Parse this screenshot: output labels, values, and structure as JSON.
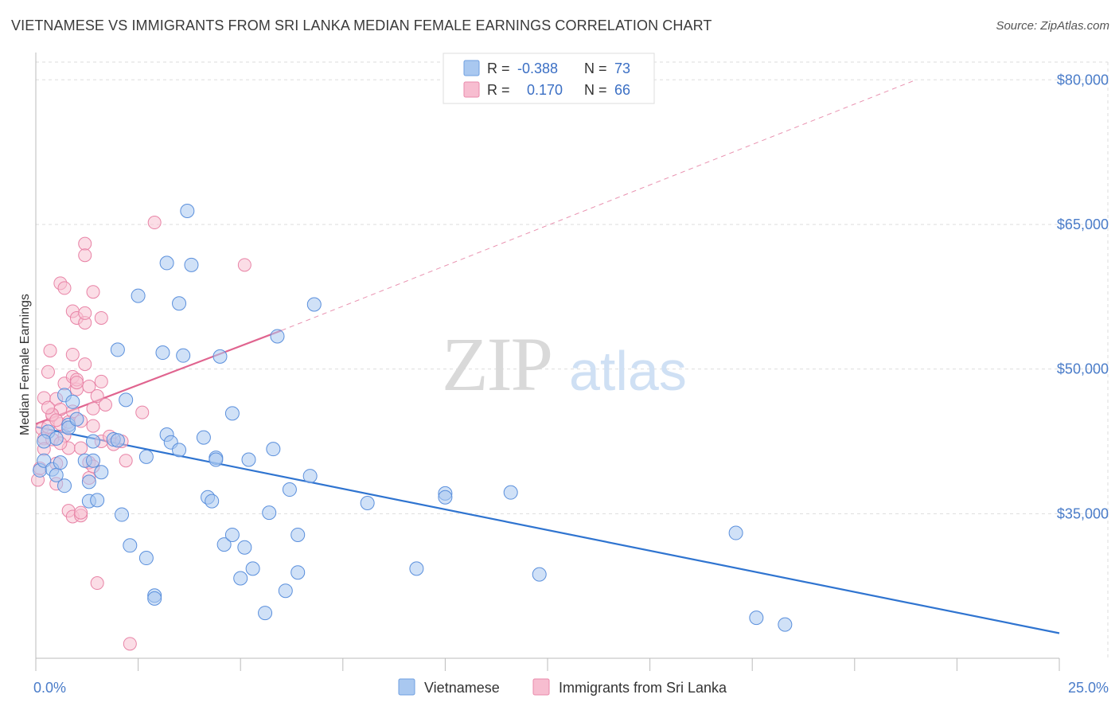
{
  "title": "VIETNAMESE VS IMMIGRANTS FROM SRI LANKA MEDIAN FEMALE EARNINGS CORRELATION CHART",
  "source": "Source: ZipAtlas.com",
  "watermark": "ZIPatlas",
  "legend_top": [
    {
      "r_label": "R =",
      "r_value": "-0.388",
      "n_label": "N =",
      "n_value": "73",
      "color": "#a9c8f0",
      "stroke": "#6f9fe0"
    },
    {
      "r_label": "R =",
      "r_value": "0.170",
      "n_label": "N =",
      "n_value": "66",
      "color": "#f7bdd0",
      "stroke": "#ea8aab"
    }
  ],
  "colors": {
    "vietnamese_fill": "#a9c8f0",
    "vietnamese_stroke": "#5a8fdc",
    "vietnamese_line": "#2f74d0",
    "srilanka_fill": "#f7c1d2",
    "srilanka_stroke": "#e883a6",
    "srilanka_line": "#e0648f",
    "grid": "#dddddd",
    "tick_label": "#4a7cc9"
  },
  "chart_data": {
    "type": "scatter",
    "title": "VIETNAMESE VS IMMIGRANTS FROM SRI LANKA MEDIAN FEMALE EARNINGS CORRELATION CHART",
    "xlabel": "",
    "ylabel": "Median Female Earnings",
    "xlim": [
      0,
      25
    ],
    "ylim": [
      20000,
      82500
    ],
    "x_ticks": [
      0,
      25
    ],
    "x_tick_labels": [
      "0.0%",
      "25.0%"
    ],
    "y_ticks": [
      35000,
      50000,
      65000,
      80000
    ],
    "y_tick_labels": [
      "$35,000",
      "$50,000",
      "$65,000",
      "$80,000"
    ],
    "grid": true,
    "legend_position": "top-center",
    "series": [
      {
        "name": "Vietnamese",
        "r": -0.388,
        "n": 73,
        "trend": {
          "x": [
            0,
            25
          ],
          "y": [
            44000,
            22600
          ]
        },
        "points": [
          [
            0.1,
            39500
          ],
          [
            0.2,
            40500
          ],
          [
            0.3,
            43500
          ],
          [
            0.4,
            39600
          ],
          [
            0.5,
            39000
          ],
          [
            0.5,
            42800
          ],
          [
            0.6,
            40300
          ],
          [
            0.7,
            47300
          ],
          [
            0.8,
            44200
          ],
          [
            0.8,
            43900
          ],
          [
            0.9,
            46600
          ],
          [
            1.0,
            44800
          ],
          [
            1.2,
            40500
          ],
          [
            1.3,
            36300
          ],
          [
            1.3,
            38300
          ],
          [
            1.4,
            40500
          ],
          [
            1.4,
            42500
          ],
          [
            1.6,
            39300
          ],
          [
            1.9,
            42700
          ],
          [
            2.0,
            42600
          ],
          [
            2.0,
            52000
          ],
          [
            2.1,
            34900
          ],
          [
            2.2,
            46800
          ],
          [
            2.3,
            31700
          ],
          [
            2.5,
            57600
          ],
          [
            2.7,
            30400
          ],
          [
            2.7,
            40900
          ],
          [
            2.9,
            26500
          ],
          [
            2.9,
            26200
          ],
          [
            3.1,
            51700
          ],
          [
            3.2,
            61000
          ],
          [
            3.2,
            43200
          ],
          [
            3.3,
            42400
          ],
          [
            3.5,
            41600
          ],
          [
            3.5,
            56800
          ],
          [
            3.6,
            51400
          ],
          [
            3.7,
            66400
          ],
          [
            3.8,
            60800
          ],
          [
            4.1,
            42900
          ],
          [
            4.2,
            36700
          ],
          [
            4.3,
            36300
          ],
          [
            4.4,
            40800
          ],
          [
            4.4,
            40600
          ],
          [
            4.5,
            51300
          ],
          [
            4.6,
            31800
          ],
          [
            4.8,
            32800
          ],
          [
            4.8,
            45400
          ],
          [
            5.0,
            28300
          ],
          [
            5.1,
            31500
          ],
          [
            5.2,
            40600
          ],
          [
            5.3,
            29300
          ],
          [
            5.6,
            24700
          ],
          [
            5.7,
            35100
          ],
          [
            5.8,
            41700
          ],
          [
            5.9,
            53400
          ],
          [
            6.1,
            27000
          ],
          [
            6.2,
            37500
          ],
          [
            6.4,
            28900
          ],
          [
            6.4,
            32800
          ],
          [
            6.7,
            38900
          ],
          [
            6.8,
            56700
          ],
          [
            8.1,
            36100
          ],
          [
            9.3,
            29300
          ],
          [
            10.0,
            37100
          ],
          [
            10.0,
            36700
          ],
          [
            11.6,
            37200
          ],
          [
            12.3,
            28700
          ],
          [
            17.1,
            33000
          ],
          [
            17.6,
            24200
          ],
          [
            18.3,
            23500
          ],
          [
            0.2,
            42500
          ],
          [
            1.5,
            36400
          ],
          [
            0.7,
            37900
          ]
        ]
      },
      {
        "name": "Immigrants from Sri Lanka",
        "r": 0.17,
        "n": 66,
        "trend": {
          "x": [
            0,
            6
          ],
          "y": [
            44300,
            54000
          ]
        },
        "trend_extended": {
          "x": [
            6,
            21.5
          ],
          "y": [
            54000,
            80000
          ]
        },
        "points": [
          [
            0.05,
            38500
          ],
          [
            0.1,
            39700
          ],
          [
            0.15,
            43800
          ],
          [
            0.2,
            42800
          ],
          [
            0.2,
            47000
          ],
          [
            0.3,
            49700
          ],
          [
            0.3,
            44000
          ],
          [
            0.35,
            51900
          ],
          [
            0.4,
            45200
          ],
          [
            0.4,
            42700
          ],
          [
            0.5,
            46900
          ],
          [
            0.5,
            40200
          ],
          [
            0.5,
            38100
          ],
          [
            0.6,
            44300
          ],
          [
            0.6,
            45800
          ],
          [
            0.6,
            58900
          ],
          [
            0.7,
            48500
          ],
          [
            0.7,
            43100
          ],
          [
            0.7,
            58400
          ],
          [
            0.8,
            35300
          ],
          [
            0.8,
            41800
          ],
          [
            0.8,
            44500
          ],
          [
            0.9,
            45600
          ],
          [
            0.9,
            49200
          ],
          [
            0.9,
            34700
          ],
          [
            0.9,
            56000
          ],
          [
            0.9,
            51500
          ],
          [
            1.0,
            47900
          ],
          [
            1.0,
            48900
          ],
          [
            1.0,
            48600
          ],
          [
            1.0,
            55300
          ],
          [
            1.1,
            34800
          ],
          [
            1.1,
            35100
          ],
          [
            1.1,
            44600
          ],
          [
            1.1,
            41800
          ],
          [
            1.2,
            50500
          ],
          [
            1.2,
            63000
          ],
          [
            1.2,
            61800
          ],
          [
            1.2,
            54800
          ],
          [
            1.2,
            55800
          ],
          [
            1.3,
            48200
          ],
          [
            1.3,
            38700
          ],
          [
            1.3,
            40300
          ],
          [
            1.4,
            58000
          ],
          [
            1.4,
            45900
          ],
          [
            1.4,
            39900
          ],
          [
            1.4,
            44100
          ],
          [
            1.5,
            27800
          ],
          [
            1.5,
            47200
          ],
          [
            1.6,
            55300
          ],
          [
            1.6,
            48700
          ],
          [
            1.6,
            42500
          ],
          [
            1.7,
            46300
          ],
          [
            1.8,
            43000
          ],
          [
            1.9,
            42200
          ],
          [
            2.1,
            42500
          ],
          [
            2.2,
            40500
          ],
          [
            2.3,
            21500
          ],
          [
            2.6,
            45500
          ],
          [
            2.9,
            65200
          ],
          [
            5.1,
            60800
          ],
          [
            0.4,
            45300
          ],
          [
            0.3,
            46000
          ],
          [
            0.6,
            42300
          ],
          [
            0.2,
            41700
          ],
          [
            0.5,
            44700
          ]
        ]
      }
    ]
  },
  "bottom_legend": [
    {
      "label": "Vietnamese"
    },
    {
      "label": "Immigrants from Sri Lanka"
    }
  ]
}
